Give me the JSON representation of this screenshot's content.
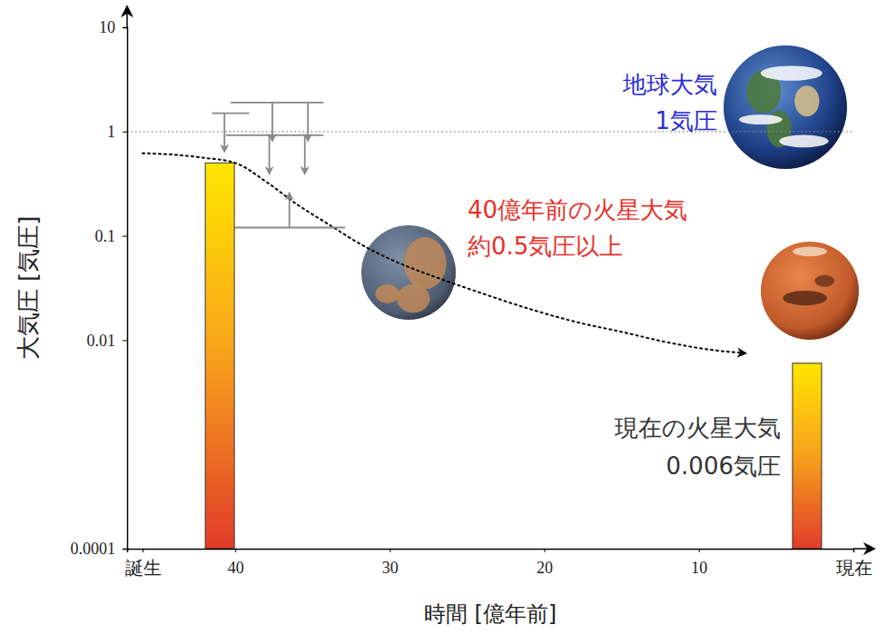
{
  "chart_data": {
    "type": "bar",
    "log": "y",
    "x_label": "時間 [億年前]",
    "y_label": "大気圧 [気圧]",
    "xlim": [
      47,
      0
    ],
    "xticks": [
      {
        "value": 46,
        "label": "誕生"
      },
      40,
      30,
      20,
      10,
      {
        "value": 0,
        "label": "現在"
      }
    ],
    "ylim": [
      0.0001,
      10
    ],
    "yticks": [
      0.0001,
      0.01,
      0.1,
      1,
      10
    ],
    "reference_line": 1,
    "series": [
      {
        "type": "bar",
        "x": [
          41,
          3
        ],
        "values": [
          0.5,
          0.006
        ]
      },
      {
        "type": "line",
        "line_style": "dotted",
        "x": [
          46,
          44,
          42,
          40,
          38,
          36,
          34,
          32,
          30,
          27,
          24,
          21,
          18,
          15,
          12,
          9,
          7
        ],
        "values": [
          0.62,
          0.6,
          0.56,
          0.5,
          0.33,
          0.2,
          0.13,
          0.085,
          0.06,
          0.04,
          0.028,
          0.02,
          0.015,
          0.012,
          0.0095,
          0.008,
          0.0075
        ]
      }
    ],
    "limits": [
      {
        "x": [
          41.5,
          39.1
        ],
        "value": 1.5,
        "direction": "down",
        "arrow_x": [
          40.7
        ]
      },
      {
        "x": [
          40.3,
          34.3
        ],
        "value": 1.9,
        "direction": "down",
        "arrow_x": [
          37.6,
          35.3
        ]
      },
      {
        "x": [
          40.6,
          34.3
        ],
        "value": 0.92,
        "direction": "down",
        "arrow_x": [
          37.8,
          35.5
        ]
      },
      {
        "x": [
          40,
          32.9
        ],
        "value": 0.12,
        "direction": "up",
        "arrow_x": [
          36.5
        ]
      }
    ],
    "annotations": [
      {
        "lines": [
          "地球大気",
          "1気圧"
        ],
        "color": "#2b2bd6"
      },
      {
        "lines": [
          "40億年前の火星大気",
          "約0.5気圧以上"
        ],
        "color": "#e8302a"
      },
      {
        "lines": [
          "現在の火星大気",
          "0.006気圧"
        ],
        "color": "#333333"
      }
    ]
  }
}
